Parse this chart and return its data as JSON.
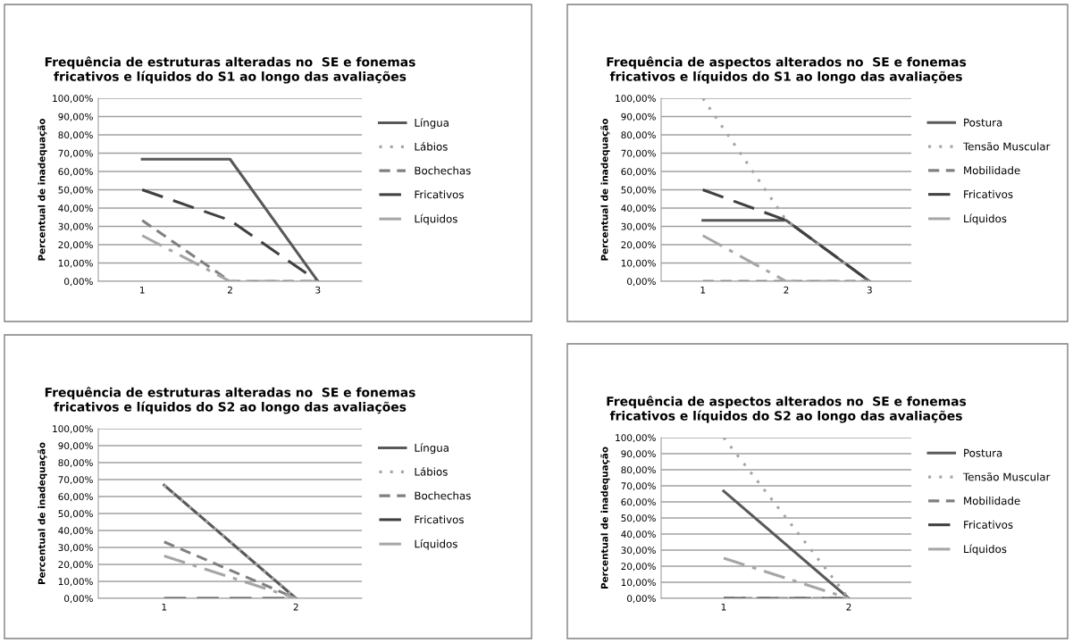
{
  "chart_data": [
    {
      "type": "line",
      "title": "Frequência de estruturas alteradas no  SE e fonemas\nfricativos e líquidos do S1 ao longo das avaliações",
      "ylabel": "Percentual de inadequação",
      "categories": [
        "1",
        "2",
        "3"
      ],
      "ylim": [
        0,
        100
      ],
      "yticks": [
        {
          "value": 0,
          "label": "0,00%"
        },
        {
          "value": 10,
          "label": "10,00%"
        },
        {
          "value": 20,
          "label": "20,00%"
        },
        {
          "value": 30,
          "label": "30,00%"
        },
        {
          "value": 40,
          "label": "40,00%"
        },
        {
          "value": 50,
          "label": "50,00%"
        },
        {
          "value": 60,
          "label": "60,00%"
        },
        {
          "value": 70,
          "label": "70,00%"
        },
        {
          "value": 80,
          "label": "80,00%"
        },
        {
          "value": 90,
          "label": "90,00%"
        },
        {
          "value": 100,
          "label": "100,00%"
        }
      ],
      "grid": "y",
      "legend": "right",
      "marker": "none",
      "series": [
        {
          "name": "Língua",
          "color": "#595959",
          "line_style": "solid",
          "values": [
            66.7,
            66.7,
            0
          ]
        },
        {
          "name": "Lábios",
          "color": "#a6a6a6",
          "line_style": "dotted",
          "values": [
            null,
            null,
            null
          ]
        },
        {
          "name": "Bochechas",
          "color": "#808080",
          "line_style": "dashed",
          "values": [
            33.3,
            0,
            0
          ]
        },
        {
          "name": "Fricativos",
          "color": "#404040",
          "line_style": "longdash",
          "values": [
            50,
            33.3,
            0
          ]
        },
        {
          "name": "Líquidos",
          "color": "#a6a6a6",
          "line_style": "dashdot",
          "values": [
            25,
            0,
            0
          ]
        }
      ]
    },
    {
      "type": "line",
      "title": "Frequência de aspectos alterados no  SE e fonemas\nfricativos e líquidos do S1 ao longo das avaliações",
      "ylabel": "Percentual de inadequação",
      "categories": [
        "1",
        "2",
        "3"
      ],
      "ylim": [
        0,
        100
      ],
      "yticks": [
        {
          "value": 0,
          "label": "0,00%"
        },
        {
          "value": 10,
          "label": "10,00%"
        },
        {
          "value": 20,
          "label": "20,00%"
        },
        {
          "value": 30,
          "label": "30,00%"
        },
        {
          "value": 40,
          "label": "40,00%"
        },
        {
          "value": 50,
          "label": "50,00%"
        },
        {
          "value": 60,
          "label": "60,00%"
        },
        {
          "value": 70,
          "label": "70,00%"
        },
        {
          "value": 80,
          "label": "80,00%"
        },
        {
          "value": 90,
          "label": "90,00%"
        },
        {
          "value": 100,
          "label": "100,00%"
        }
      ],
      "grid": "y",
      "legend": "right",
      "marker": "none",
      "series": [
        {
          "name": "Postura",
          "color": "#595959",
          "line_style": "solid",
          "values": [
            33.3,
            33.3,
            0
          ]
        },
        {
          "name": "Tensão Muscular",
          "color": "#a6a6a6",
          "line_style": "dotted",
          "values": [
            100,
            33.3,
            0
          ]
        },
        {
          "name": "Mobilidade",
          "color": "#808080",
          "line_style": "dashed",
          "values": [
            0,
            0,
            0
          ]
        },
        {
          "name": "Fricativos",
          "color": "#404040",
          "line_style": "longdash",
          "values": [
            50,
            33.3,
            0
          ]
        },
        {
          "name": "Líquidos",
          "color": "#a6a6a6",
          "line_style": "dashdot",
          "values": [
            25,
            0,
            0
          ]
        }
      ]
    },
    {
      "type": "line",
      "title": "Frequência de estruturas alteradas no  SE e fonemas\nfricativos e líquidos do S2 ao longo das avaliações",
      "ylabel": "Percentual de inadequação",
      "categories": [
        "1",
        "2"
      ],
      "ylim": [
        0,
        100
      ],
      "yticks": [
        {
          "value": 0,
          "label": "0,00%"
        },
        {
          "value": 10,
          "label": "10,00%"
        },
        {
          "value": 20,
          "label": "20,00%"
        },
        {
          "value": 30,
          "label": "30,00%"
        },
        {
          "value": 40,
          "label": "40,00%"
        },
        {
          "value": 50,
          "label": "50,00%"
        },
        {
          "value": 60,
          "label": "60,00%"
        },
        {
          "value": 70,
          "label": "70,00%"
        },
        {
          "value": 80,
          "label": "80,00%"
        },
        {
          "value": 90,
          "label": "90,00%"
        },
        {
          "value": 100,
          "label": "100,00%"
        }
      ],
      "grid": "y",
      "legend": "right",
      "marker": "none",
      "series": [
        {
          "name": "Língua",
          "color": "#595959",
          "line_style": "solid",
          "values": [
            66.7,
            0
          ]
        },
        {
          "name": "Lábios",
          "color": "#a6a6a6",
          "line_style": "dotted",
          "values": [
            66.7,
            0
          ]
        },
        {
          "name": "Bochechas",
          "color": "#808080",
          "line_style": "dashed",
          "values": [
            33.3,
            0
          ]
        },
        {
          "name": "Fricativos",
          "color": "#404040",
          "line_style": "longdash",
          "values": [
            0,
            0
          ]
        },
        {
          "name": "Líquidos",
          "color": "#a6a6a6",
          "line_style": "dashdot",
          "values": [
            25,
            0
          ]
        }
      ]
    },
    {
      "type": "line",
      "title": "Frequência de aspectos alterados no  SE e fonemas\nfricativos e líquidos do S2 ao longo das avaliações",
      "ylabel": "Percentual de inadequação",
      "categories": [
        "1",
        "2"
      ],
      "ylim": [
        0,
        100
      ],
      "yticks": [
        {
          "value": 0,
          "label": "0,00%"
        },
        {
          "value": 10,
          "label": "10,00%"
        },
        {
          "value": 20,
          "label": "20,00%"
        },
        {
          "value": 30,
          "label": "30,00%"
        },
        {
          "value": 40,
          "label": "40,00%"
        },
        {
          "value": 50,
          "label": "50,00%"
        },
        {
          "value": 60,
          "label": "60,00%"
        },
        {
          "value": 70,
          "label": "70,00%"
        },
        {
          "value": 80,
          "label": "80,00%"
        },
        {
          "value": 90,
          "label": "90,00%"
        },
        {
          "value": 100,
          "label": "100,00%"
        }
      ],
      "grid": "y",
      "legend": "right",
      "marker": "none",
      "series": [
        {
          "name": "Postura",
          "color": "#595959",
          "line_style": "solid",
          "values": [
            66.7,
            0
          ]
        },
        {
          "name": "Tensão Muscular",
          "color": "#a6a6a6",
          "line_style": "dotted",
          "values": [
            100,
            0
          ]
        },
        {
          "name": "Mobilidade",
          "color": "#808080",
          "line_style": "dashed",
          "values": [
            0,
            0
          ]
        },
        {
          "name": "Fricativos",
          "color": "#404040",
          "line_style": "longdash",
          "values": [
            0,
            0
          ]
        },
        {
          "name": "Líquidos",
          "color": "#a6a6a6",
          "line_style": "dashdot",
          "values": [
            25,
            0
          ]
        }
      ]
    }
  ]
}
